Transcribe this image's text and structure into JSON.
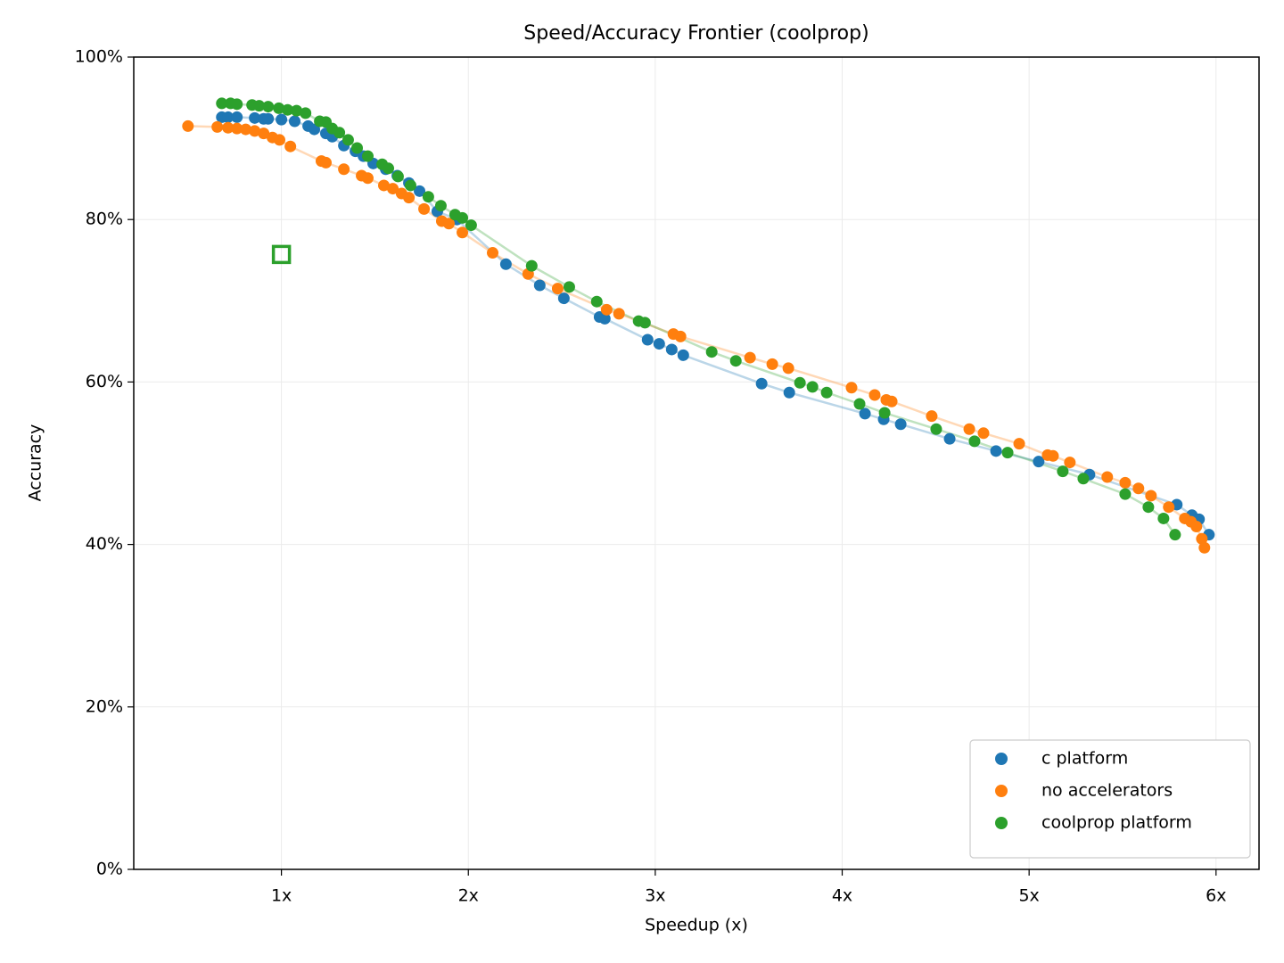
{
  "chart_data": {
    "type": "scatter",
    "title": "Speed/Accuracy Frontier (coolprop)",
    "xlabel": "Speedup (x)",
    "ylabel": "Accuracy",
    "xlim": [
      0.21,
      6.23
    ],
    "ylim": [
      0,
      100
    ],
    "xticks": [
      {
        "value": 1,
        "label": "1x"
      },
      {
        "value": 2,
        "label": "2x"
      },
      {
        "value": 3,
        "label": "3x"
      },
      {
        "value": 4,
        "label": "4x"
      },
      {
        "value": 5,
        "label": "5x"
      },
      {
        "value": 6,
        "label": "6x"
      }
    ],
    "yticks": [
      {
        "value": 0,
        "label": "0%"
      },
      {
        "value": 20,
        "label": "20%"
      },
      {
        "value": 40,
        "label": "40%"
      },
      {
        "value": 60,
        "label": "60%"
      },
      {
        "value": 80,
        "label": "80%"
      },
      {
        "value": 100,
        "label": "100%"
      }
    ],
    "grid": true,
    "legend": "lower right",
    "connect_lines": true,
    "series": [
      {
        "name": "c platform",
        "color": "#1f77b4",
        "x": [
          0.681,
          0.714,
          0.762,
          0.857,
          0.905,
          0.929,
          1.0,
          1.071,
          1.143,
          1.176,
          1.238,
          1.272,
          1.334,
          1.396,
          1.439,
          1.491,
          1.558,
          1.62,
          1.682,
          1.739,
          1.834,
          1.939,
          2.201,
          2.382,
          2.511,
          2.702,
          2.73,
          2.959,
          3.021,
          3.088,
          3.15,
          3.569,
          3.717,
          4.122,
          4.222,
          4.313,
          4.575,
          4.823,
          5.051,
          5.323,
          5.79,
          5.871,
          5.909,
          5.962
        ],
        "values": [
          92.6,
          92.6,
          92.6,
          92.5,
          92.4,
          92.4,
          92.3,
          92.1,
          91.5,
          91.1,
          90.6,
          90.2,
          89.1,
          88.4,
          87.8,
          86.9,
          86.2,
          85.4,
          84.5,
          83.5,
          81.0,
          80.0,
          74.5,
          71.9,
          70.3,
          68.0,
          67.8,
          65.2,
          64.7,
          64.0,
          63.3,
          59.8,
          58.7,
          56.1,
          55.4,
          54.8,
          53.0,
          51.5,
          50.2,
          48.6,
          44.9,
          43.6,
          43.1,
          41.2
        ]
      },
      {
        "name": "no accelerators",
        "color": "#ff7f0e",
        "x": [
          0.5,
          0.657,
          0.714,
          0.762,
          0.809,
          0.857,
          0.905,
          0.952,
          0.99,
          1.048,
          1.214,
          1.238,
          1.334,
          1.429,
          1.462,
          1.548,
          1.596,
          1.643,
          1.682,
          1.763,
          1.858,
          1.896,
          1.968,
          2.13,
          2.32,
          2.478,
          2.74,
          2.806,
          3.097,
          3.135,
          3.507,
          3.626,
          3.712,
          4.05,
          4.174,
          4.236,
          4.265,
          4.479,
          4.68,
          4.756,
          4.947,
          5.099,
          5.128,
          5.218,
          5.418,
          5.514,
          5.585,
          5.652,
          5.747,
          5.833,
          5.866,
          5.895,
          5.924,
          5.938
        ],
        "values": [
          91.5,
          91.4,
          91.3,
          91.2,
          91.1,
          90.9,
          90.6,
          90.1,
          89.8,
          89.0,
          87.2,
          87.0,
          86.2,
          85.4,
          85.1,
          84.2,
          83.8,
          83.2,
          82.7,
          81.3,
          79.8,
          79.5,
          78.4,
          75.9,
          73.3,
          71.5,
          68.9,
          68.4,
          65.9,
          65.6,
          63.0,
          62.2,
          61.7,
          59.3,
          58.4,
          57.8,
          57.6,
          55.8,
          54.2,
          53.7,
          52.4,
          51.0,
          50.9,
          50.1,
          48.3,
          47.6,
          46.9,
          46.0,
          44.6,
          43.2,
          42.8,
          42.2,
          40.7,
          39.6
        ]
      },
      {
        "name": "coolprop platform",
        "color": "#2ca02c",
        "x": [
          0.681,
          0.728,
          0.762,
          0.843,
          0.881,
          0.929,
          0.986,
          1.033,
          1.081,
          1.129,
          1.205,
          1.238,
          1.272,
          1.31,
          1.357,
          1.405,
          1.462,
          1.539,
          1.572,
          1.624,
          1.691,
          1.786,
          1.853,
          1.929,
          1.968,
          2.015,
          2.339,
          2.54,
          2.687,
          2.911,
          2.945,
          3.302,
          3.431,
          3.774,
          3.841,
          3.917,
          4.093,
          4.227,
          4.503,
          4.708,
          4.885,
          5.18,
          5.29,
          5.514,
          5.638,
          5.719,
          5.781
        ],
        "values": [
          94.3,
          94.3,
          94.2,
          94.1,
          94.0,
          93.9,
          93.7,
          93.5,
          93.4,
          93.1,
          92.1,
          92.0,
          91.2,
          90.7,
          89.8,
          88.8,
          87.8,
          86.8,
          86.3,
          85.3,
          84.2,
          82.8,
          81.7,
          80.6,
          80.2,
          79.3,
          74.3,
          71.7,
          69.9,
          67.5,
          67.3,
          63.7,
          62.6,
          59.9,
          59.4,
          58.7,
          57.3,
          56.2,
          54.2,
          52.7,
          51.3,
          49.0,
          48.1,
          46.2,
          44.6,
          43.2,
          41.2
        ]
      }
    ],
    "reference_point": {
      "x": 1,
      "y": 75.7,
      "color": "#2ca02c"
    }
  }
}
